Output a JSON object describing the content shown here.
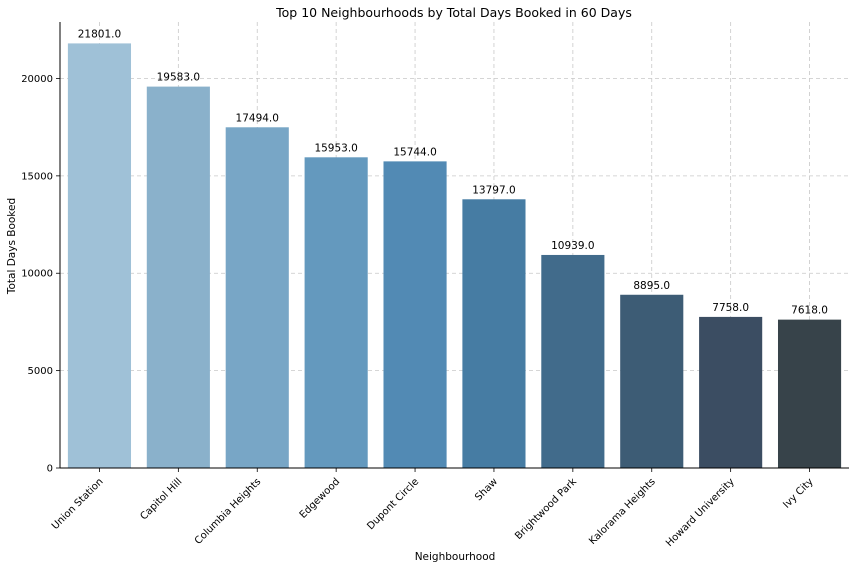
{
  "chart_data": {
    "type": "bar",
    "title": "Top 10 Neighbourhoods by Total Days Booked in 60 Days",
    "xlabel": "Neighbourhood",
    "ylabel": "Total Days Booked",
    "categories": [
      "Union Station",
      "Capitol Hill",
      "Columbia Heights",
      "Edgewood",
      "Dupont Circle",
      "Shaw",
      "Brightwood Park",
      "Kalorama Heights",
      "Howard University",
      "Ivy City"
    ],
    "values": [
      21801.0,
      19583.0,
      17494.0,
      15953.0,
      15744.0,
      13797.0,
      10939.0,
      8895.0,
      7758.0,
      7618.0
    ],
    "data_labels": [
      "21801.0",
      "19583.0",
      "17494.0",
      "15953.0",
      "15744.0",
      "13797.0",
      "10939.0",
      "8895.0",
      "7758.0",
      "7618.0"
    ],
    "colors": [
      "#9fc1d7",
      "#8ab1cb",
      "#78a6c6",
      "#6499be",
      "#528ab4",
      "#467ca3",
      "#416b8b",
      "#3d5c75",
      "#3b4d62",
      "#37434a"
    ],
    "ylim": [
      0,
      22900
    ],
    "yticks": [
      0,
      5000,
      10000,
      15000,
      20000
    ],
    "ytick_labels": [
      "0",
      "5000",
      "10000",
      "15000",
      "20000"
    ],
    "grid": true
  }
}
